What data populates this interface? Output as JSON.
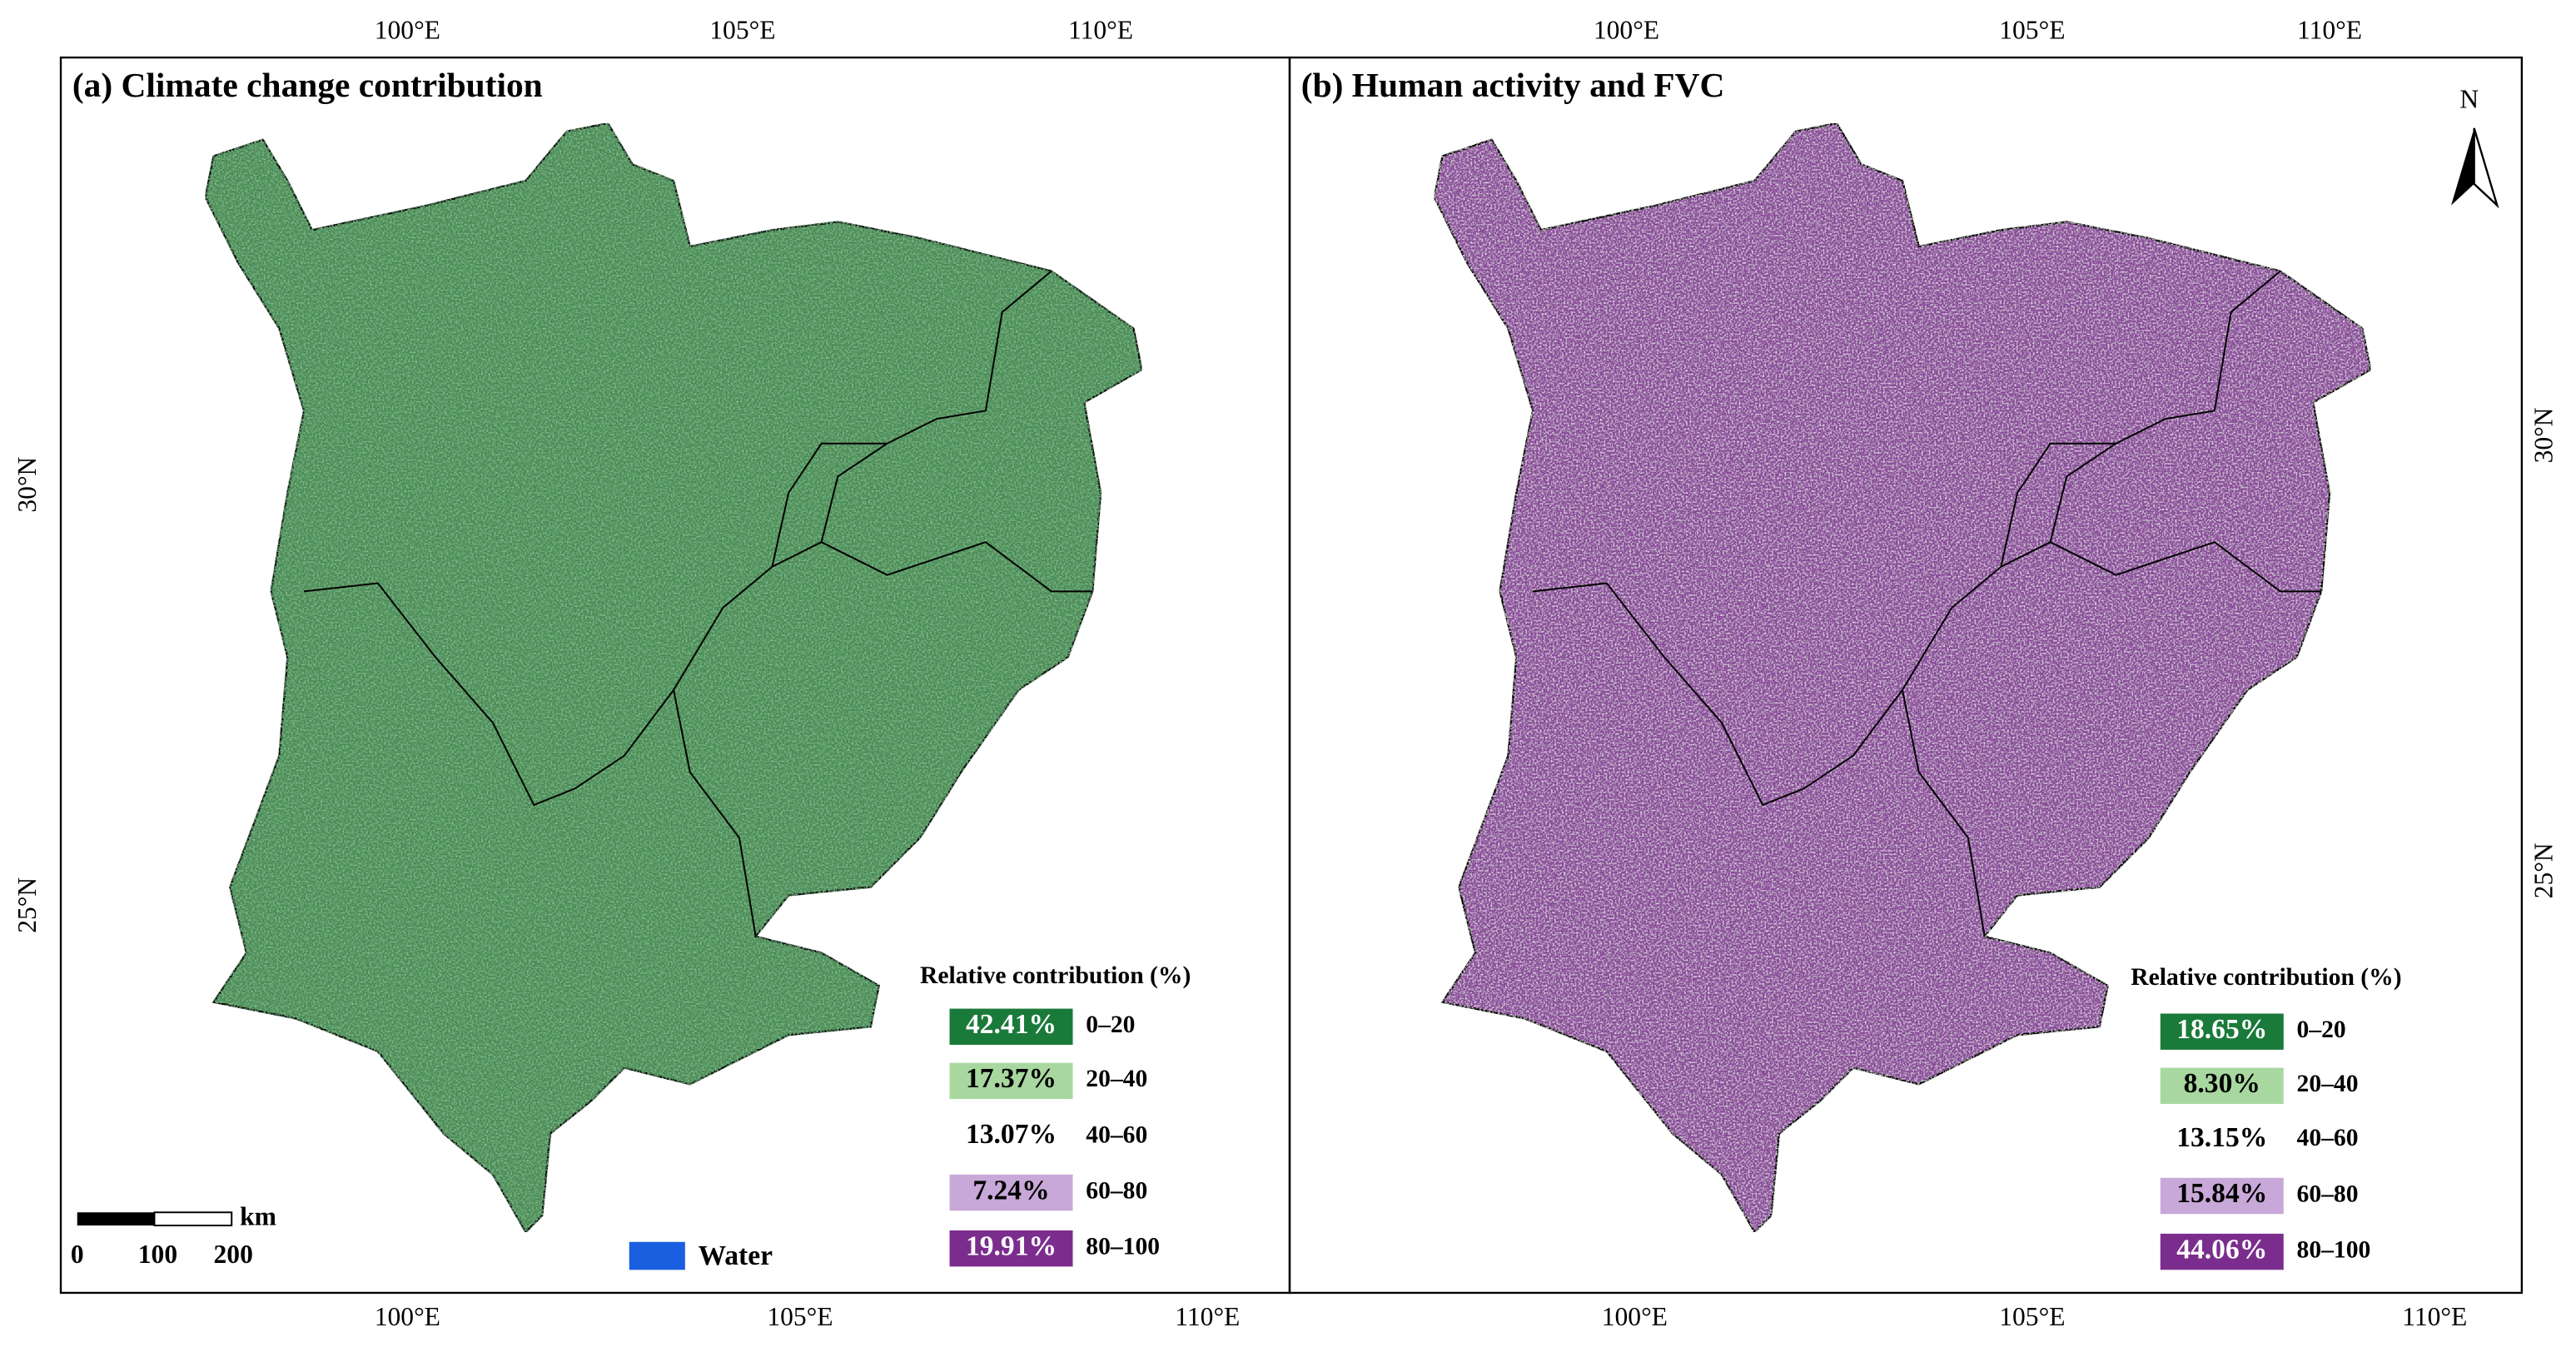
{
  "panels": [
    {
      "title": "(a) Climate change contribution",
      "top_ticks": [
        "100°E",
        "105°E",
        "110°E"
      ],
      "bottom_ticks": [
        "100°E",
        "105°E",
        "110°E"
      ],
      "side_ticks": [
        "30°N",
        "25°N"
      ],
      "legend": {
        "title": "Relative contribution (%)",
        "items": [
          {
            "percent": "42.41%",
            "range": "0–20"
          },
          {
            "percent": "17.37%",
            "range": "20–40"
          },
          {
            "percent": "13.07%",
            "range": "40–60"
          },
          {
            "percent": "7.24%",
            "range": "60–80"
          },
          {
            "percent": "19.91%",
            "range": "80–100"
          }
        ]
      }
    },
    {
      "title": "(b) Human activity and FVC",
      "top_ticks": [
        "100°E",
        "105°E",
        "110°E"
      ],
      "bottom_ticks": [
        "100°E",
        "105°E",
        "110°E"
      ],
      "side_ticks": [
        "30°N",
        "25°N"
      ],
      "legend": {
        "title": "Relative contribution (%)",
        "items": [
          {
            "percent": "18.65%",
            "range": "0–20"
          },
          {
            "percent": "8.30%",
            "range": "20–40"
          },
          {
            "percent": "13.15%",
            "range": "40–60"
          },
          {
            "percent": "15.84%",
            "range": "60–80"
          },
          {
            "percent": "44.06%",
            "range": "80–100"
          }
        ]
      }
    }
  ],
  "scale_bar": {
    "unit": "km",
    "labels": [
      "0",
      "100",
      "200"
    ]
  },
  "water_label": "Water",
  "north_label": "N"
}
